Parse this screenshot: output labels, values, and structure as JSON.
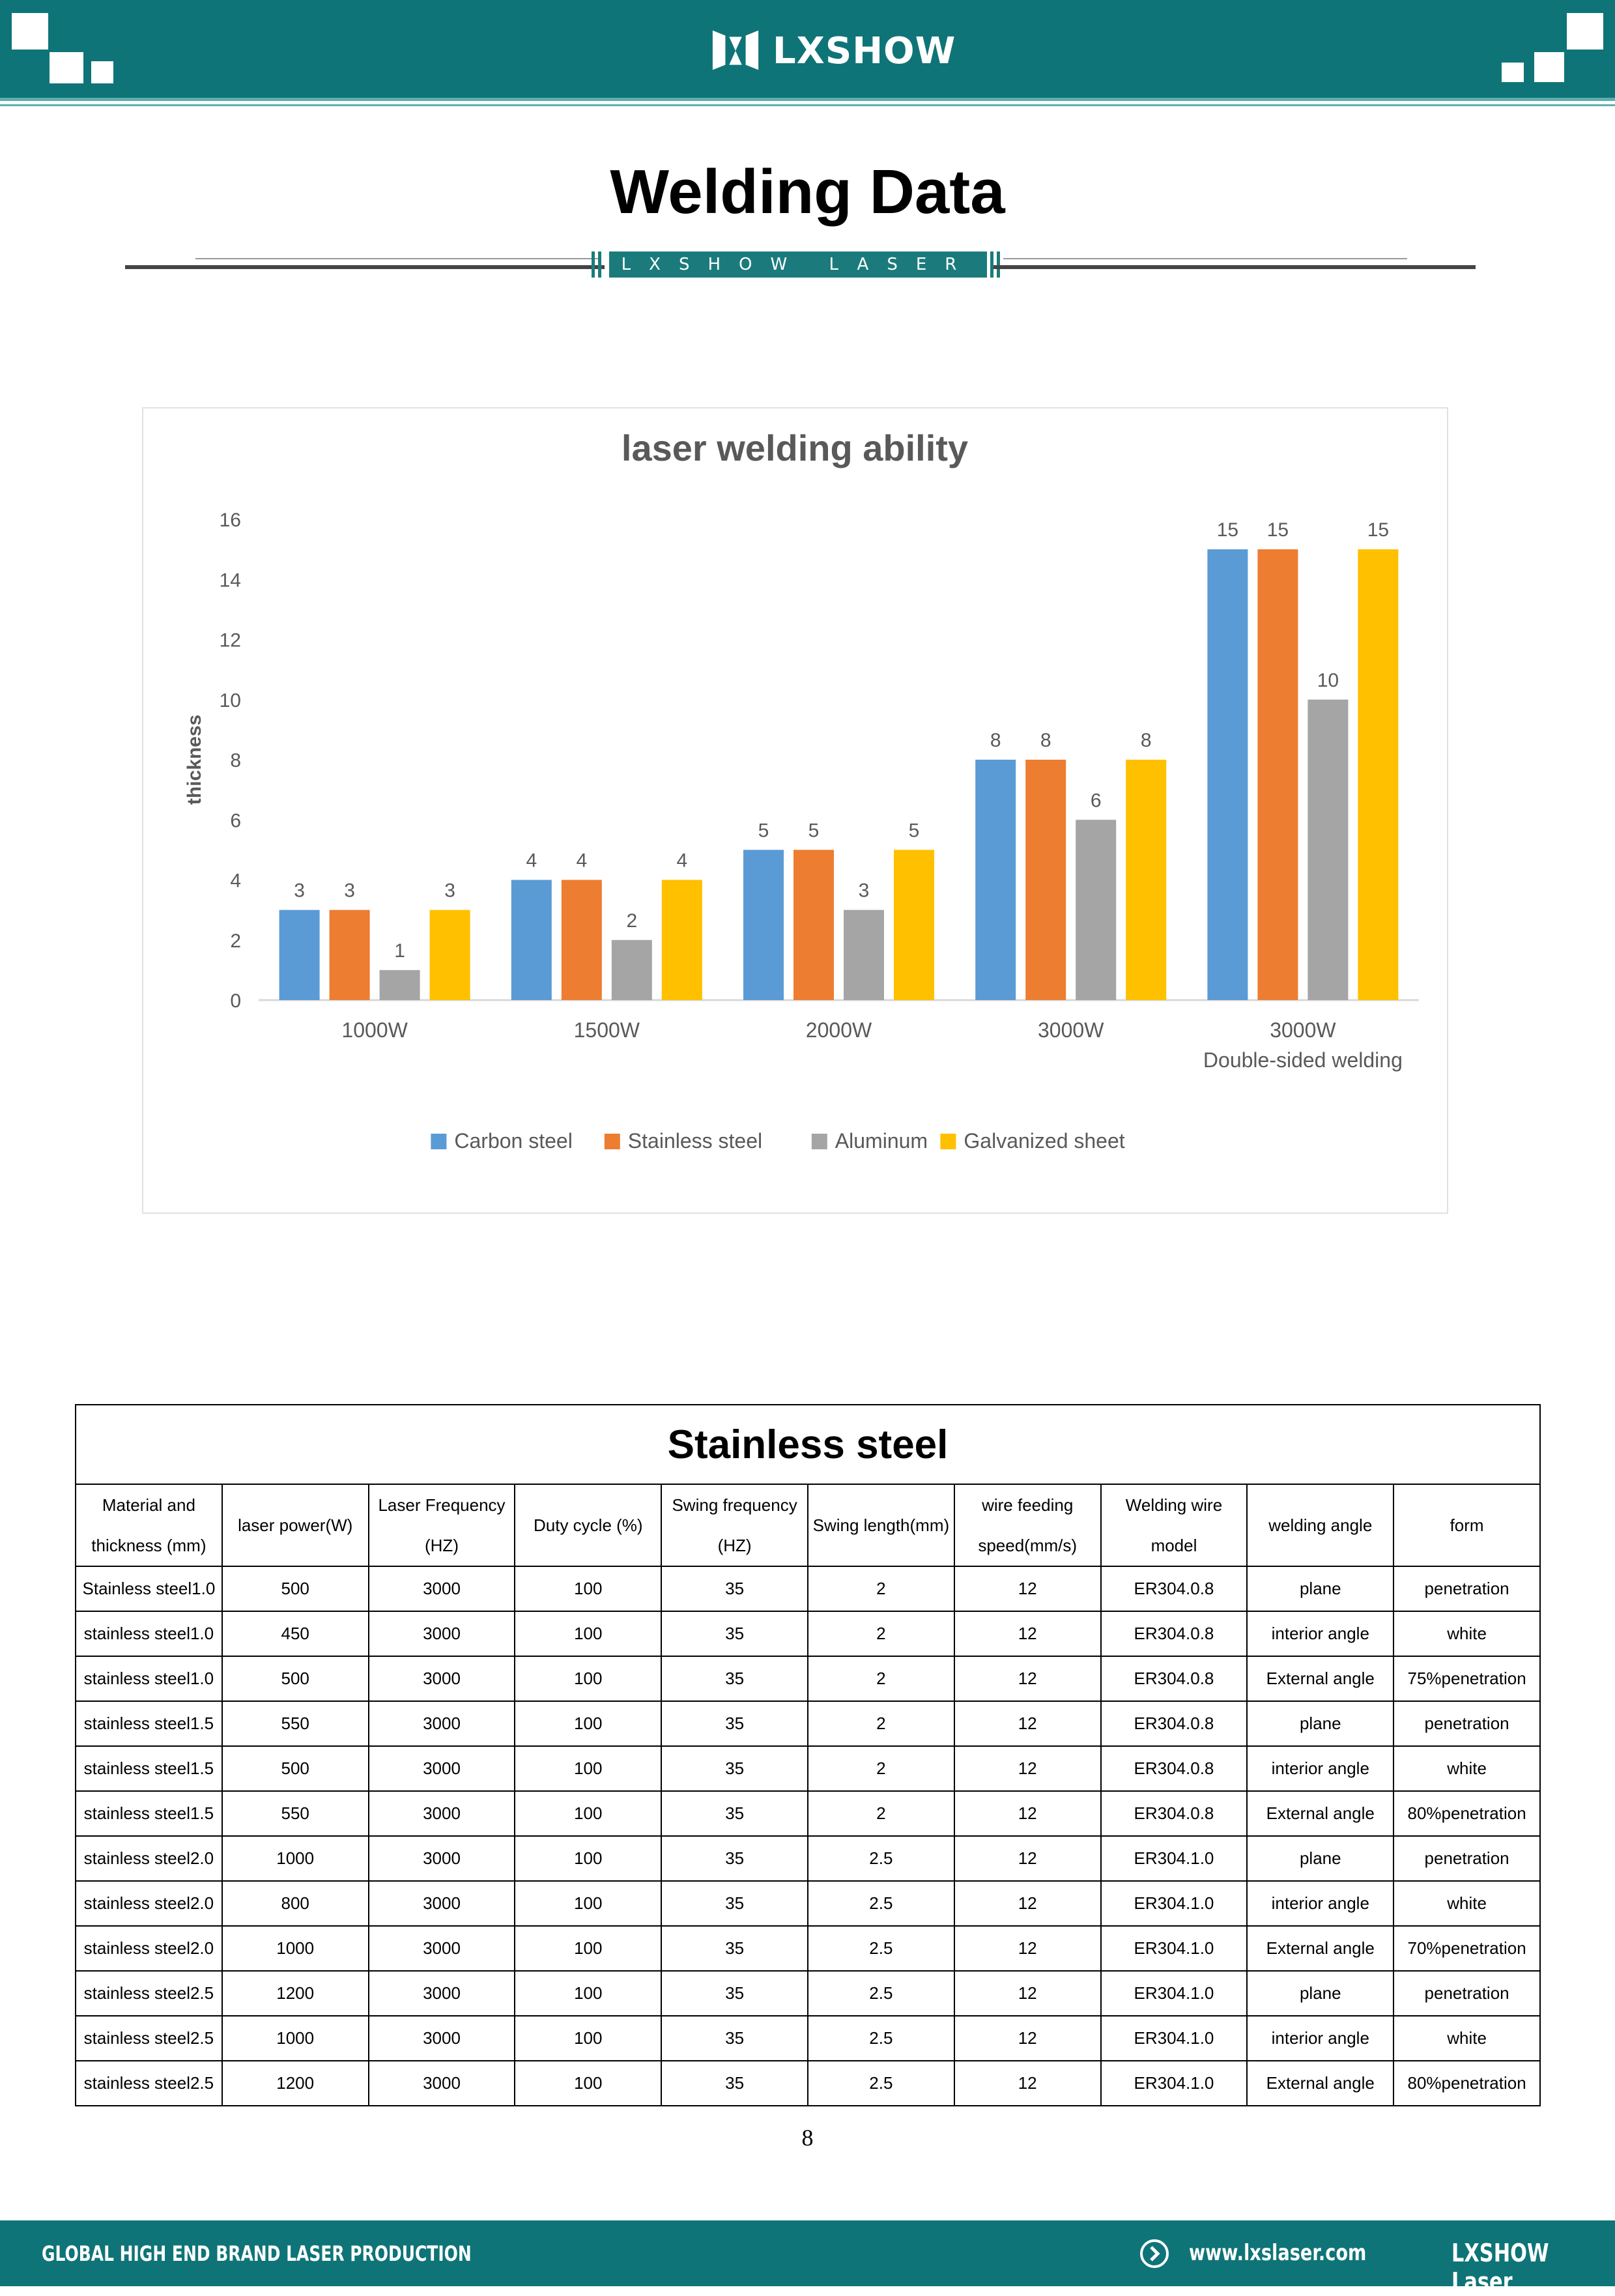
{
  "header": {
    "brand": "LXSHOW"
  },
  "page": {
    "title": "Welding Data",
    "ribbon": "LXSHOW LASER",
    "page_number": "8"
  },
  "chart_data": {
    "type": "bar",
    "title": "laser welding ability",
    "ylabel": "thickness",
    "xlabel": "",
    "ylim": [
      0,
      16
    ],
    "yticks": [
      0,
      2,
      4,
      6,
      8,
      10,
      12,
      14,
      16
    ],
    "categories": [
      "1000W",
      "1500W",
      "2000W",
      "3000W",
      "3000W\nDouble-sided welding"
    ],
    "series": [
      {
        "name": "Carbon steel",
        "color": "#5b9bd5",
        "values": [
          3,
          4,
          5,
          8,
          15
        ]
      },
      {
        "name": "Stainless steel",
        "color": "#ed7d31",
        "values": [
          3,
          4,
          5,
          8,
          15
        ]
      },
      {
        "name": "Aluminum",
        "color": "#a5a5a5",
        "values": [
          1,
          2,
          3,
          6,
          10
        ]
      },
      {
        "name": "Galvanized sheet",
        "color": "#ffc000",
        "values": [
          3,
          4,
          5,
          8,
          15
        ]
      }
    ],
    "data_labels": true,
    "legend": "bottom",
    "grid": false
  },
  "table": {
    "title": "Stainless steel",
    "headers": [
      [
        "Material and",
        "thickness (mm)"
      ],
      [
        "laser power(W)"
      ],
      [
        "Laser Frequency",
        "(HZ)"
      ],
      [
        "Duty cycle (%)"
      ],
      [
        "Swing frequency",
        "(HZ)"
      ],
      [
        "Swing length(mm)"
      ],
      [
        "wire  feeding",
        "speed(mm/s)"
      ],
      [
        "Welding wire",
        "model"
      ],
      [
        "welding angle"
      ],
      [
        "form"
      ]
    ],
    "rows": [
      [
        "Stainless steel1.0",
        "500",
        "3000",
        "100",
        "35",
        "2",
        "12",
        "ER304.0.8",
        "plane",
        "penetration"
      ],
      [
        "stainless steel1.0",
        "450",
        "3000",
        "100",
        "35",
        "2",
        "12",
        "ER304.0.8",
        "interior angle",
        "white"
      ],
      [
        "stainless steel1.0",
        "500",
        "3000",
        "100",
        "35",
        "2",
        "12",
        "ER304.0.8",
        "External angle",
        "75%penetration"
      ],
      [
        "stainless steel1.5",
        "550",
        "3000",
        "100",
        "35",
        "2",
        "12",
        "ER304.0.8",
        "plane",
        "penetration"
      ],
      [
        "stainless steel1.5",
        "500",
        "3000",
        "100",
        "35",
        "2",
        "12",
        "ER304.0.8",
        "interior angle",
        "white"
      ],
      [
        "stainless steel1.5",
        "550",
        "3000",
        "100",
        "35",
        "2",
        "12",
        "ER304.0.8",
        "External angle",
        "80%penetration"
      ],
      [
        "stainless steel2.0",
        "1000",
        "3000",
        "100",
        "35",
        "2.5",
        "12",
        "ER304.1.0",
        "plane",
        "penetration"
      ],
      [
        "stainless steel2.0",
        "800",
        "3000",
        "100",
        "35",
        "2.5",
        "12",
        "ER304.1.0",
        "interior angle",
        "white"
      ],
      [
        "stainless steel2.0",
        "1000",
        "3000",
        "100",
        "35",
        "2.5",
        "12",
        "ER304.1.0",
        "External angle",
        "70%penetration"
      ],
      [
        "stainless steel2.5",
        "1200",
        "3000",
        "100",
        "35",
        "2.5",
        "12",
        "ER304.1.0",
        "plane",
        "penetration"
      ],
      [
        "stainless steel2.5",
        "1000",
        "3000",
        "100",
        "35",
        "2.5",
        "12",
        "ER304.1.0",
        "interior angle",
        "white"
      ],
      [
        "stainless steel2.5",
        "1200",
        "3000",
        "100",
        "35",
        "2.5",
        "12",
        "ER304.1.0",
        "External angle",
        "80%penetration"
      ]
    ]
  },
  "footer": {
    "tagline": "GLOBAL HIGH END BRAND LASER PRODUCTION",
    "url": "www.lxslaser.com",
    "brand": "LXSHOW Laser"
  },
  "colors": {
    "teal": "#0f7477",
    "ribbon": "#1b7b7c"
  }
}
